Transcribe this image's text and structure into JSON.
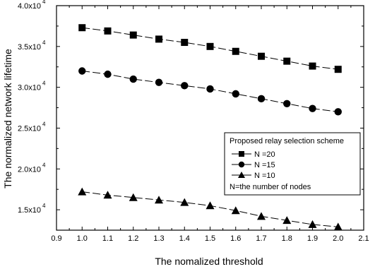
{
  "chart_data": {
    "type": "line",
    "title": "",
    "xlabel": "The nomalized threshold",
    "ylabel": "The normalized network lifetime",
    "xlim": [
      0.9,
      2.1
    ],
    "ylim": [
      12500,
      40000
    ],
    "grid": false,
    "legend_position": "right",
    "x": [
      1.0,
      1.1,
      1.2,
      1.3,
      1.4,
      1.5,
      1.6,
      1.7,
      1.8,
      1.9,
      2.0
    ],
    "x_ticks": [
      "0.9",
      "1.0",
      "1.1",
      "1.2",
      "1.3",
      "1.4",
      "1.5",
      "1.6",
      "1.7",
      "1.8",
      "1.9",
      "2.0",
      "2.1"
    ],
    "y_ticks": [
      {
        "value": 15000,
        "mantissa": "1.5x10",
        "exponent": "4"
      },
      {
        "value": 20000,
        "mantissa": "2.0x10",
        "exponent": "4"
      },
      {
        "value": 25000,
        "mantissa": "2.5x10",
        "exponent": "4"
      },
      {
        "value": 30000,
        "mantissa": "3.0x10",
        "exponent": "4"
      },
      {
        "value": 35000,
        "mantissa": "3.5x10",
        "exponent": "4"
      },
      {
        "value": 40000,
        "mantissa": "4.0x10",
        "exponent": "4"
      }
    ],
    "legend_title": "Proposed relay selection scheme",
    "legend_note": "N=the number of nodes",
    "series": [
      {
        "name": "N =20",
        "marker": "square",
        "values": [
          37300,
          36900,
          36400,
          35900,
          35500,
          35000,
          34400,
          33800,
          33200,
          32600,
          32200
        ]
      },
      {
        "name": "N =15",
        "marker": "circle",
        "values": [
          32000,
          31600,
          31000,
          30600,
          30200,
          29800,
          29200,
          28600,
          28000,
          27400,
          27000
        ]
      },
      {
        "name": "N =10",
        "marker": "triangle",
        "values": [
          17200,
          16800,
          16500,
          16200,
          15900,
          15500,
          14900,
          14200,
          13700,
          13200,
          12900
        ]
      }
    ]
  }
}
